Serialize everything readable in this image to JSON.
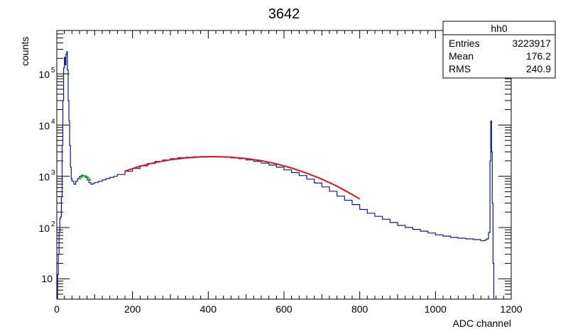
{
  "chart_data": {
    "type": "histogram",
    "title": "3642",
    "xlabel": "ADC channel",
    "ylabel": "counts",
    "xlim": [
      0,
      1200
    ],
    "ylim": [
      4,
      700000
    ],
    "y_scale": "log",
    "x_ticks": [
      0,
      200,
      400,
      600,
      800,
      1000,
      1200
    ],
    "x_tick_labels": [
      "0",
      "200",
      "400",
      "600",
      "800",
      "1000",
      "1200"
    ],
    "y_ticks": [
      10,
      100,
      1000,
      10000,
      100000
    ],
    "y_tick_labels": [
      {
        "base": "10",
        "exp": ""
      },
      {
        "base": "10",
        "exp": "2"
      },
      {
        "base": "10",
        "exp": "3"
      },
      {
        "base": "10",
        "exp": "4"
      },
      {
        "base": "10",
        "exp": "5"
      }
    ],
    "grid": false,
    "stats_box": {
      "name": "hh0",
      "rows": [
        {
          "label": "Entries",
          "value": "3223917"
        },
        {
          "label": "Mean",
          "value": "176.2"
        },
        {
          "label": "RMS",
          "value": "240.9"
        }
      ],
      "placement": "top-right"
    },
    "series": [
      {
        "role": "histogram",
        "color": "#0a1a8c",
        "x": [
          0,
          2,
          4,
          6,
          8,
          10,
          12,
          14,
          16,
          18,
          20,
          22,
          24,
          26,
          28,
          30,
          32,
          34,
          36,
          38,
          40,
          45,
          50,
          55,
          60,
          65,
          70,
          75,
          80,
          85,
          90,
          95,
          100,
          110,
          120,
          130,
          140,
          150,
          160,
          180,
          200,
          220,
          240,
          260,
          280,
          300,
          320,
          340,
          360,
          380,
          400,
          420,
          440,
          460,
          480,
          500,
          520,
          540,
          560,
          580,
          600,
          620,
          640,
          660,
          680,
          700,
          720,
          740,
          760,
          780,
          800,
          820,
          840,
          860,
          880,
          900,
          920,
          940,
          960,
          980,
          1000,
          1020,
          1040,
          1060,
          1080,
          1100,
          1120,
          1130,
          1135,
          1140,
          1144,
          1146,
          1148,
          1150,
          1152,
          1154
        ],
        "values": [
          4,
          12,
          30,
          80,
          150,
          160,
          400,
          4000,
          30000,
          130000,
          210000,
          150000,
          240000,
          270000,
          120000,
          30000,
          12000,
          4000,
          1500,
          900,
          800,
          700,
          800,
          900,
          1000,
          1050,
          1000,
          950,
          850,
          750,
          700,
          720,
          760,
          800,
          850,
          900,
          950,
          1000,
          1080,
          1250,
          1420,
          1600,
          1780,
          1950,
          2080,
          2200,
          2300,
          2350,
          2400,
          2420,
          2430,
          2400,
          2350,
          2280,
          2200,
          2080,
          1950,
          1800,
          1650,
          1500,
          1330,
          1180,
          1030,
          880,
          740,
          620,
          510,
          410,
          340,
          280,
          225,
          190,
          165,
          145,
          125,
          110,
          100,
          92,
          85,
          78,
          72,
          68,
          64,
          62,
          60,
          58,
          55,
          57,
          60,
          80,
          2000,
          12000,
          3000,
          300,
          20,
          3
        ]
      },
      {
        "role": "fit",
        "color": "#e0141e",
        "x": [
          180,
          220,
          260,
          300,
          340,
          380,
          420,
          460,
          500,
          540,
          580,
          620,
          660,
          700,
          740,
          780,
          800
        ],
        "values": [
          1260,
          1570,
          1860,
          2100,
          2280,
          2380,
          2410,
          2360,
          2220,
          2010,
          1750,
          1450,
          1150,
          880,
          640,
          440,
          360
        ]
      },
      {
        "role": "fit",
        "color": "#1ec81e",
        "x": [
          60,
          65,
          70,
          75,
          80,
          85,
          90
        ],
        "values": [
          870,
          950,
          1010,
          1030,
          990,
          910,
          820
        ]
      }
    ]
  }
}
